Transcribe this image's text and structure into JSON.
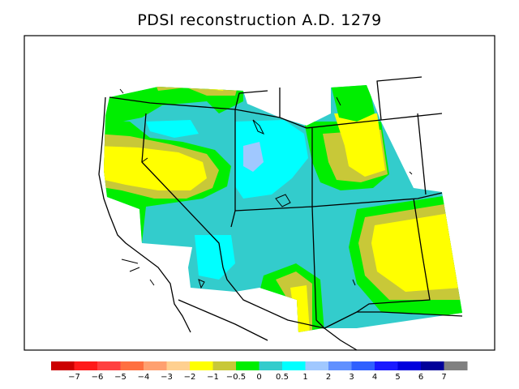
{
  "title": "PDSI reconstruction A.D. 1279",
  "legend": {
    "colors": [
      "#cc0000",
      "#ff1a1a",
      "#ff4040",
      "#ff7040",
      "#ffa070",
      "#ffd090",
      "#ffff00",
      "#c8c838",
      "#00ee00",
      "#33cccc",
      "#00ffff",
      "#a0c8ff",
      "#6090ff",
      "#3060ff",
      "#1a1aff",
      "#0000dd",
      "#000099",
      "#808080"
    ],
    "ticks": [
      "−7",
      "−6",
      "−5",
      "−4",
      "−3",
      "−2",
      "−1",
      "−0.5",
      "0",
      "0.5",
      "1",
      "2",
      "3",
      "4",
      "5",
      "6",
      "7"
    ]
  }
}
